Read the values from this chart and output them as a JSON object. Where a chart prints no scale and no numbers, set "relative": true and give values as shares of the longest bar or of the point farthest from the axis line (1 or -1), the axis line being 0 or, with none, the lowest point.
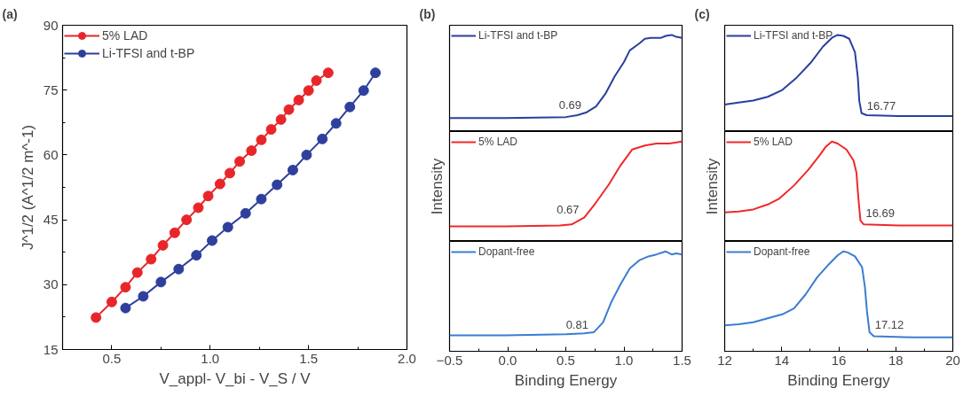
{
  "chart_data": [
    {
      "type": "line",
      "title": "(a)",
      "xlabel": "V_appl- V_bi - V_S / V",
      "ylabel": "J^1/2 (A^1/2 m^-1)",
      "marker": "circle",
      "legend": "top left",
      "grid": false,
      "xlim": [
        0.25,
        2.0
      ],
      "xticks": [
        0.5,
        {
          "value": 1.0,
          "label": "1.0"
        },
        1.5,
        {
          "value": 2.0,
          "label": "2.0"
        }
      ],
      "ylim": [
        15,
        90
      ],
      "yticks": [
        15,
        30,
        45,
        60,
        75,
        90
      ],
      "series": [
        {
          "name": "5% LAD",
          "color": "#e8262a",
          "x": [
            0.42,
            0.5,
            0.57,
            0.63,
            0.7,
            0.76,
            0.82,
            0.88,
            0.94,
            0.99,
            1.05,
            1.1,
            1.15,
            1.21,
            1.26,
            1.31,
            1.36,
            1.4,
            1.45,
            1.5,
            1.54,
            1.6
          ],
          "values": [
            22.4,
            26.0,
            29.4,
            32.8,
            35.9,
            39.1,
            42.0,
            45.0,
            47.8,
            50.5,
            53.3,
            55.8,
            58.5,
            61.0,
            63.5,
            65.9,
            68.2,
            70.5,
            72.7,
            74.9,
            77.2,
            79.0
          ]
        },
        {
          "name": "Li-TFSI and t-BP",
          "color": "#2e3f9c",
          "x": [
            0.57,
            0.66,
            0.75,
            0.84,
            0.93,
            1.01,
            1.09,
            1.18,
            1.26,
            1.34,
            1.42,
            1.49,
            1.57,
            1.64,
            1.71,
            1.78,
            1.84
          ],
          "values": [
            24.6,
            27.3,
            30.6,
            33.6,
            36.8,
            40.2,
            43.3,
            46.5,
            49.8,
            53.1,
            56.5,
            60.0,
            63.7,
            67.3,
            71.1,
            74.9,
            79.0
          ]
        }
      ]
    },
    {
      "type": "line",
      "title": "(b)",
      "relative": true,
      "legend": "top left",
      "tick_labels": false,
      "xlim": [
        -0.5,
        1.5
      ],
      "annotations": [
        {
          "text": "0.69",
          "x": 0.68,
          "y": 0.2
        }
      ],
      "series": [
        {
          "name": "Li-TFSI and t-BP",
          "color": "#2b3f9e",
          "x": [
            -0.5,
            -0.02,
            0.5,
            0.6,
            0.68,
            0.76,
            0.84,
            0.92,
            1.0,
            1.05,
            1.13,
            1.18,
            1.23,
            1.28,
            1.32,
            1.36,
            1.41,
            1.45,
            1.5
          ],
          "values": [
            0.14,
            0.14,
            0.15,
            0.17,
            0.2,
            0.26,
            0.39,
            0.57,
            0.72,
            0.84,
            0.91,
            0.96,
            0.97,
            0.97,
            0.97,
            0.99,
            1.0,
            0.98,
            0.97
          ]
        }
      ]
    },
    {
      "type": "line",
      "relative": true,
      "legend": "top left",
      "tick_labels": false,
      "xlim": [
        -0.5,
        1.5
      ],
      "ylabel": "Intensity",
      "annotations": [
        {
          "text": "0.67",
          "x": 0.66,
          "y": 0.24
        }
      ],
      "series": [
        {
          "name": "5% LAD",
          "color": "#f0282a",
          "x": [
            -0.5,
            -0.02,
            0.45,
            0.55,
            0.66,
            0.76,
            0.87,
            0.97,
            1.07,
            1.18,
            1.28,
            1.39,
            1.5
          ],
          "values": [
            0.15,
            0.15,
            0.16,
            0.17,
            0.24,
            0.39,
            0.57,
            0.76,
            0.92,
            0.96,
            0.98,
            0.98,
            1.0
          ]
        }
      ]
    },
    {
      "type": "line",
      "relative": true,
      "legend": "top left",
      "tick_labels": "x",
      "xlim": [
        -0.5,
        1.5
      ],
      "xlabel": "Binding Energy",
      "xticks": [
        -0.5,
        {
          "value": 0.0,
          "label": "0.0"
        },
        0.5,
        {
          "value": 1.0,
          "label": "1.0"
        },
        1.5
      ],
      "annotations": [
        {
          "text": "0.81",
          "x": 0.74,
          "y": 0.19
        }
      ],
      "series": [
        {
          "name": "Dopant-free",
          "color": "#3a7dd0",
          "x": [
            -0.5,
            -0.02,
            0.5,
            0.66,
            0.74,
            0.82,
            0.89,
            0.97,
            1.05,
            1.13,
            1.21,
            1.28,
            1.36,
            1.41,
            1.45,
            1.5
          ],
          "values": [
            0.16,
            0.16,
            0.17,
            0.18,
            0.19,
            0.29,
            0.49,
            0.67,
            0.83,
            0.91,
            0.95,
            0.97,
            1.0,
            0.97,
            0.98,
            0.97
          ]
        }
      ]
    },
    {
      "type": "line",
      "title": "(c)",
      "relative": true,
      "legend": "top left",
      "tick_labels": false,
      "xlim": [
        12,
        20
      ],
      "annotations": [
        {
          "text": "16.77",
          "x": 16.8,
          "y": 0.19
        }
      ],
      "series": [
        {
          "name": "Li-TFSI and t-BP",
          "color": "#2b3f9e",
          "x": [
            12.0,
            12.49,
            13.0,
            13.51,
            14.02,
            14.53,
            15.04,
            15.45,
            15.76,
            15.96,
            16.16,
            16.37,
            16.57,
            16.67,
            16.72,
            16.8,
            16.98,
            18.1,
            20.0
          ],
          "values": [
            0.28,
            0.3,
            0.32,
            0.36,
            0.43,
            0.56,
            0.72,
            0.88,
            0.97,
            1.0,
            0.99,
            0.96,
            0.82,
            0.56,
            0.32,
            0.19,
            0.17,
            0.16,
            0.16
          ]
        }
      ]
    },
    {
      "type": "line",
      "relative": true,
      "legend": "top left",
      "tick_labels": false,
      "xlim": [
        12,
        20
      ],
      "ylabel": "Intensity",
      "annotations": [
        {
          "text": "16.69",
          "x": 16.76,
          "y": 0.21
        }
      ],
      "series": [
        {
          "name": "5% LAD",
          "color": "#f0282a",
          "x": [
            12.0,
            12.49,
            13.0,
            13.51,
            13.92,
            14.43,
            14.94,
            15.35,
            15.55,
            15.76,
            15.96,
            16.27,
            16.52,
            16.62,
            16.69,
            16.76,
            16.88,
            18.1,
            20.0
          ],
          "values": [
            0.29,
            0.3,
            0.32,
            0.37,
            0.43,
            0.56,
            0.72,
            0.87,
            0.95,
            1.0,
            0.98,
            0.92,
            0.81,
            0.69,
            0.43,
            0.21,
            0.17,
            0.16,
            0.16
          ]
        }
      ]
    },
    {
      "type": "line",
      "relative": true,
      "legend": "top left",
      "tick_labels": "x",
      "xlim": [
        12,
        20
      ],
      "xlabel": "Binding Energy",
      "xticks": [
        12,
        14,
        16,
        18,
        20
      ],
      "annotations": [
        {
          "text": "17.12",
          "x": 17.08,
          "y": 0.19
        }
      ],
      "series": [
        {
          "name": "Dopant-free",
          "color": "#3a7dd0",
          "x": [
            12.0,
            12.49,
            13.0,
            13.51,
            14.02,
            14.43,
            14.84,
            15.24,
            15.65,
            15.96,
            16.16,
            16.31,
            16.57,
            16.82,
            16.92,
            16.99,
            17.08,
            17.23,
            18.61,
            20.0
          ],
          "values": [
            0.26,
            0.27,
            0.29,
            0.33,
            0.37,
            0.43,
            0.57,
            0.74,
            0.87,
            0.96,
            1.0,
            0.99,
            0.95,
            0.84,
            0.64,
            0.4,
            0.19,
            0.15,
            0.14,
            0.14
          ]
        }
      ]
    }
  ]
}
